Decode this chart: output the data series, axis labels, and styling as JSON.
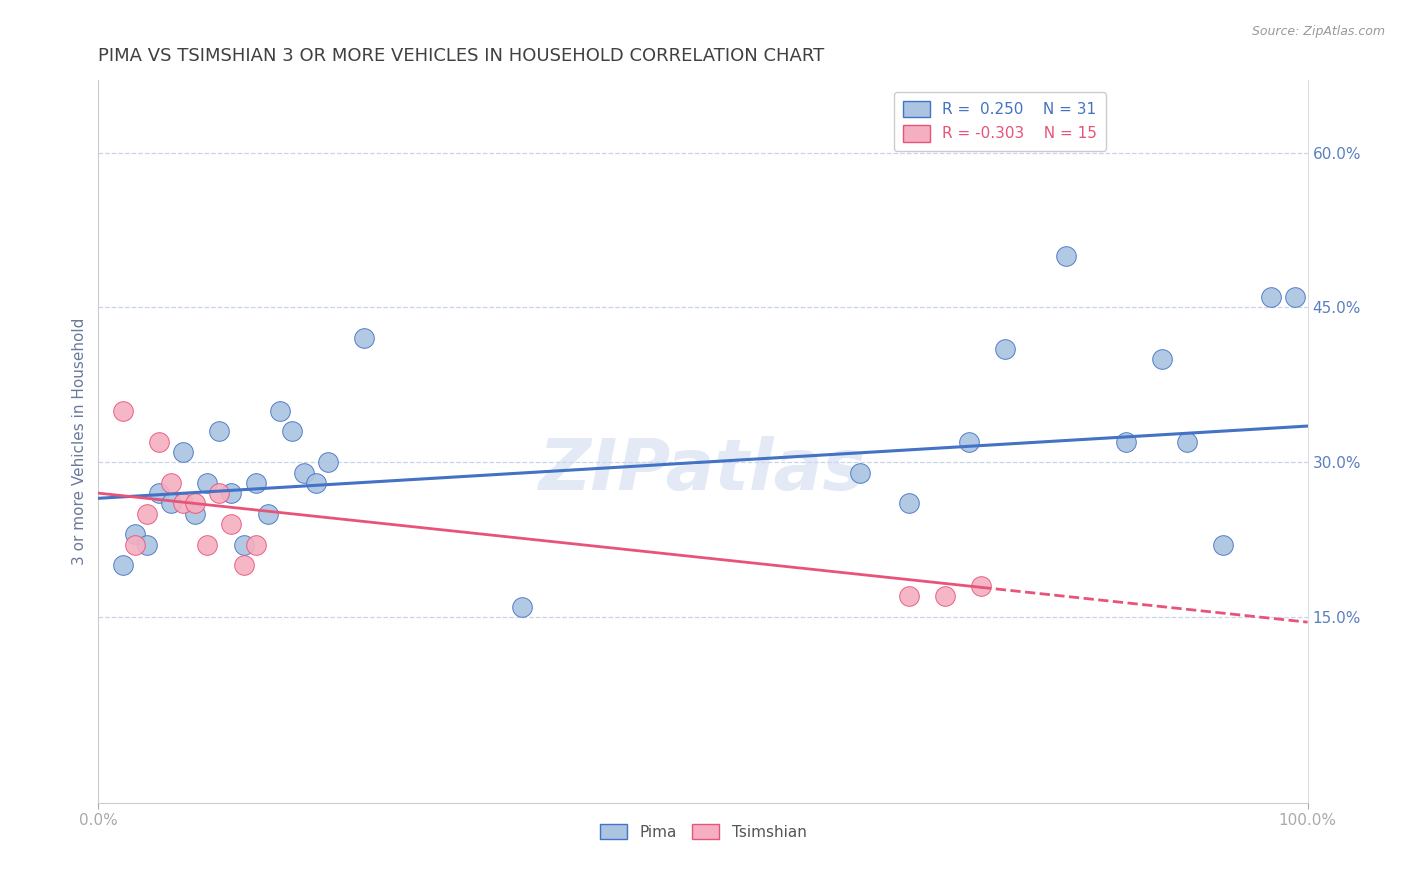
{
  "title": "PIMA VS TSIMSHIAN 3 OR MORE VEHICLES IN HOUSEHOLD CORRELATION CHART",
  "source": "Source: ZipAtlas.com",
  "xlabel": "",
  "ylabel": "3 or more Vehicles in Household",
  "xlim": [
    0,
    100
  ],
  "ylim": [
    -3,
    67
  ],
  "yticks": [
    0,
    15,
    30,
    45,
    60
  ],
  "yticklabels_right": [
    "",
    "15.0%",
    "30.0%",
    "45.0%",
    "60.0%"
  ],
  "xticks": [
    0,
    100
  ],
  "xticklabels": [
    "0.0%",
    "100.0%"
  ],
  "watermark": "ZIPatlas",
  "legend_r_pima": "0.250",
  "legend_n_pima": "31",
  "legend_r_tsimshian": "-0.303",
  "legend_n_tsimshian": "15",
  "pima_color": "#aac4e2",
  "tsimshian_color": "#f4afc0",
  "pima_line_color": "#4472c4",
  "tsimshian_line_color": "#e8537a",
  "background_color": "#ffffff",
  "grid_color": "#c8d4e8",
  "title_color": "#404040",
  "axis_label_color": "#6a7a9a",
  "tick_label_color": "#5a7fc0",
  "source_color": "#999999",
  "pima_x": [
    2,
    3,
    4,
    5,
    6,
    7,
    8,
    9,
    10,
    11,
    12,
    13,
    14,
    15,
    16,
    17,
    18,
    19,
    22,
    35,
    63,
    67,
    72,
    75,
    80,
    85,
    88,
    90,
    93,
    97,
    99
  ],
  "pima_y": [
    20,
    23,
    22,
    27,
    26,
    31,
    25,
    28,
    33,
    27,
    22,
    28,
    25,
    35,
    33,
    29,
    28,
    30,
    42,
    16,
    29,
    26,
    32,
    41,
    50,
    32,
    40,
    32,
    22,
    46,
    46
  ],
  "tsimshian_x": [
    2,
    3,
    4,
    5,
    6,
    7,
    8,
    9,
    10,
    11,
    12,
    13,
    67,
    70,
    73
  ],
  "tsimshian_y": [
    35,
    22,
    25,
    32,
    28,
    26,
    26,
    22,
    27,
    24,
    20,
    22,
    17,
    17,
    18
  ],
  "pima_trend_x0": 0,
  "pima_trend_y0": 26.5,
  "pima_trend_x1": 100,
  "pima_trend_y1": 33.5,
  "tsimshian_trend_x0": 0,
  "tsimshian_trend_y0": 27.0,
  "tsimshian_trend_x1": 100,
  "tsimshian_trend_y1": 14.5,
  "tsimshian_solid_end_x": 73
}
